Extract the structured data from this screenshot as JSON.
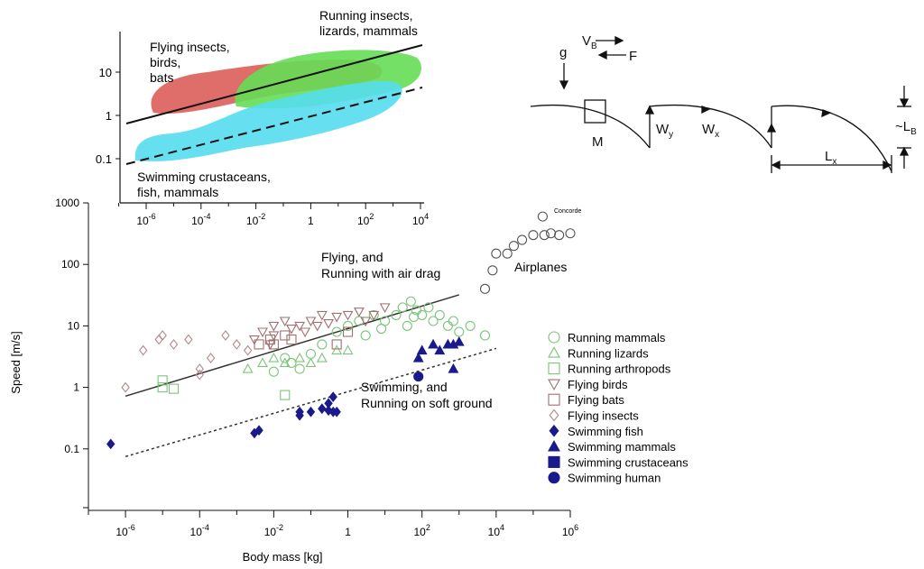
{
  "main_chart": {
    "xlabel": "Body mass [kg]",
    "ylabel": "Speed [m/s]",
    "xlim_log10": [
      -7,
      6
    ],
    "ylim_log10": [
      -1,
      3
    ],
    "x_ticks": [
      {
        "m": "10",
        "e": "-6"
      },
      {
        "m": "10",
        "e": "-4"
      },
      {
        "m": "10",
        "e": "-2"
      },
      {
        "m": "1",
        "e": ""
      },
      {
        "m": "10",
        "e": "2"
      },
      {
        "m": "10",
        "e": "4"
      },
      {
        "m": "10",
        "e": "6"
      }
    ],
    "y_ticks": [
      "0.1",
      "1",
      "10",
      "100",
      "1000"
    ],
    "annotations": {
      "flying_line1": "Flying, and",
      "flying_line2": "Running with air drag",
      "swim_line1": "Swimming, and",
      "swim_line2": "Running on soft ground",
      "airplanes": "Airplanes",
      "concorde": "Concorde"
    },
    "legend": [
      {
        "label": "Running mammals",
        "marker": "circle-open",
        "color": "#7cc47c"
      },
      {
        "label": "Running lizards",
        "marker": "triangle-open",
        "color": "#7cc47c"
      },
      {
        "label": "Running arthropods",
        "marker": "square-open",
        "color": "#7cc47c"
      },
      {
        "label": "Flying birds",
        "marker": "triangle-down-open",
        "color": "#a07070"
      },
      {
        "label": "Flying bats",
        "marker": "square-open",
        "color": "#a07070"
      },
      {
        "label": "Flying insects",
        "marker": "diamond-open",
        "color": "#b08888"
      },
      {
        "label": "Swimming fish",
        "marker": "diamond",
        "color": "#1a1a8c"
      },
      {
        "label": "Swimming mammals",
        "marker": "triangle",
        "color": "#1a1a8c"
      },
      {
        "label": "Swimming crustaceans",
        "marker": "square",
        "color": "#1a1a8c"
      },
      {
        "label": "Swimming human",
        "marker": "circle",
        "color": "#1a1a8c"
      }
    ]
  },
  "chart_data": [
    {
      "type": "scatter",
      "title": "",
      "xlabel": "Body mass [kg]",
      "ylabel": "Speed [m/s]",
      "x_scale": "log",
      "y_scale": "log",
      "xlim": [
        1e-07,
        1000000.0
      ],
      "ylim": [
        0.01,
        1000
      ],
      "grid": false,
      "legend_position": "right",
      "lines": [
        {
          "label": "Flying, and Running with air drag",
          "style": "solid",
          "x": [
            1e-06,
            1000.0
          ],
          "y": [
            0.72,
            32
          ]
        },
        {
          "label": "Swimming, and Running on soft ground",
          "style": "dotted",
          "x": [
            1e-06,
            10000.0
          ],
          "y": [
            0.075,
            4.3
          ]
        }
      ],
      "series": [
        {
          "name": "Running mammals",
          "marker": "circle-open",
          "color": "#7cc47c",
          "points": [
            [
              0.02,
              3
            ],
            [
              0.03,
              2.5
            ],
            [
              0.05,
              2
            ],
            [
              0.1,
              3.5
            ],
            [
              0.2,
              5
            ],
            [
              0.5,
              8
            ],
            [
              1,
              10
            ],
            [
              2,
              12
            ],
            [
              5,
              15
            ],
            [
              10,
              12
            ],
            [
              20,
              15
            ],
            [
              30,
              20
            ],
            [
              50,
              25
            ],
            [
              70,
              18
            ],
            [
              100,
              15
            ],
            [
              150,
              20
            ],
            [
              200,
              12
            ],
            [
              300,
              15
            ],
            [
              500,
              10
            ],
            [
              700,
              12
            ],
            [
              1000,
              8
            ],
            [
              2000,
              10
            ],
            [
              5000,
              7
            ],
            [
              3,
              7
            ],
            [
              8,
              9
            ],
            [
              0.01,
              1.8
            ],
            [
              40,
              10
            ],
            [
              60,
              14
            ]
          ]
        },
        {
          "name": "Running lizards",
          "marker": "triangle-open",
          "color": "#7cc47c",
          "points": [
            [
              0.002,
              2
            ],
            [
              0.005,
              2.5
            ],
            [
              0.01,
              3
            ],
            [
              0.02,
              2.5
            ],
            [
              0.05,
              3
            ],
            [
              0.1,
              2.5
            ],
            [
              0.2,
              3
            ],
            [
              0.5,
              4
            ],
            [
              1,
              4
            ]
          ]
        },
        {
          "name": "Running arthropods",
          "marker": "square-open",
          "color": "#7cc47c",
          "points": [
            [
              1e-05,
              1.3
            ],
            [
              1e-05,
              1.0
            ],
            [
              0.02,
              0.75
            ],
            [
              2e-05,
              0.95
            ]
          ]
        },
        {
          "name": "Flying birds",
          "marker": "triangle-down-open",
          "color": "#a07070",
          "points": [
            [
              0.003,
              6
            ],
            [
              0.005,
              8
            ],
            [
              0.01,
              10
            ],
            [
              0.02,
              12
            ],
            [
              0.03,
              9
            ],
            [
              0.05,
              10
            ],
            [
              0.1,
              12
            ],
            [
              0.2,
              15
            ],
            [
              0.3,
              11
            ],
            [
              0.5,
              14
            ],
            [
              1,
              15
            ],
            [
              2,
              17
            ],
            [
              3,
              12
            ],
            [
              5,
              15
            ],
            [
              10,
              20
            ],
            [
              0.01,
              7
            ],
            [
              0.008,
              5
            ],
            [
              0.07,
              8
            ],
            [
              0.15,
              10
            ]
          ]
        },
        {
          "name": "Flying bats",
          "marker": "square-open",
          "color": "#a07070",
          "points": [
            [
              0.004,
              5
            ],
            [
              0.008,
              6
            ],
            [
              0.01,
              5
            ],
            [
              0.02,
              7
            ],
            [
              0.03,
              6
            ],
            [
              0.5,
              5
            ],
            [
              1,
              8
            ]
          ]
        },
        {
          "name": "Flying insects",
          "marker": "diamond-open",
          "color": "#b08888",
          "points": [
            [
              1e-06,
              1
            ],
            [
              3e-06,
              4
            ],
            [
              8e-06,
              6
            ],
            [
              1e-05,
              7
            ],
            [
              2e-05,
              5
            ],
            [
              5e-05,
              6
            ],
            [
              0.0001,
              2
            ],
            [
              0.0002,
              3
            ],
            [
              0.0005,
              7
            ],
            [
              0.001,
              5
            ],
            [
              0.002,
              4
            ],
            [
              0.0001,
              1.6
            ]
          ]
        },
        {
          "name": "Swimming fish",
          "marker": "diamond",
          "color": "#1a1a8c",
          "points": [
            [
              4e-07,
              0.12
            ],
            [
              0.003,
              0.18
            ],
            [
              0.004,
              0.2
            ],
            [
              0.05,
              0.35
            ],
            [
              0.05,
              0.4
            ],
            [
              0.1,
              0.4
            ],
            [
              0.2,
              0.45
            ],
            [
              0.3,
              0.42
            ],
            [
              0.4,
              0.4
            ],
            [
              0.5,
              0.4
            ],
            [
              0.3,
              0.55
            ],
            [
              0.4,
              0.7
            ]
          ]
        },
        {
          "name": "Swimming mammals",
          "marker": "triangle",
          "color": "#1a1a8c",
          "points": [
            [
              80,
              3
            ],
            [
              100,
              4
            ],
            [
              200,
              5
            ],
            [
              300,
              4
            ],
            [
              500,
              5
            ],
            [
              700,
              5
            ],
            [
              1000,
              5.5
            ],
            [
              700,
              2
            ]
          ]
        },
        {
          "name": "Swimming crustaceans",
          "marker": "square",
          "color": "#1a1a8c",
          "points": []
        },
        {
          "name": "Swimming human",
          "marker": "circle",
          "color": "#1a1a8c",
          "points": [
            [
              80,
              1.5
            ]
          ]
        },
        {
          "name": "Airplanes",
          "marker": "circle-open",
          "color": "#555555",
          "points": [
            [
              5000,
              40
            ],
            [
              8000,
              80
            ],
            [
              10000,
              150
            ],
            [
              20000,
              150
            ],
            [
              30000,
              200
            ],
            [
              50000,
              250
            ],
            [
              100000,
              300
            ],
            [
              200000,
              300
            ],
            [
              300000,
              320
            ],
            [
              500000,
              300
            ],
            [
              1000000,
              320
            ]
          ]
        },
        {
          "name": "Concorde",
          "marker": "circle-open",
          "color": "#555555",
          "points": [
            [
              180000,
              600
            ]
          ]
        }
      ]
    },
    {
      "type": "area",
      "x_scale": "log",
      "y_scale": "log",
      "x_ticks": [
        "10-6",
        "10-4",
        "10-2",
        "1",
        "102",
        "104"
      ],
      "y_ticks": [
        "0.1",
        "1",
        "10"
      ],
      "regions": [
        {
          "name": "Flying insects, birds, bats",
          "color": "#d9534f"
        },
        {
          "name": "Running insects, lizards, mammals",
          "color": "#66dd55"
        },
        {
          "name": "Swimming crustaceans, fish, mammals",
          "color": "#55ddee"
        }
      ],
      "lines": [
        {
          "style": "solid"
        },
        {
          "style": "dashed"
        }
      ]
    }
  ],
  "inset_chart": {
    "y_ticks": [
      "10",
      "1",
      "0.1"
    ],
    "x_ticks": [
      {
        "m": "10",
        "e": "-6"
      },
      {
        "m": "10",
        "e": "-4"
      },
      {
        "m": "10",
        "e": "-2"
      },
      {
        "m": "1",
        "e": ""
      },
      {
        "m": "10",
        "e": "2"
      },
      {
        "m": "10",
        "e": "4"
      }
    ],
    "labels": {
      "flying1": "Flying insects,",
      "flying2": "birds,",
      "flying3": "bats",
      "running1": "Running insects,",
      "running2": "lizards, mammals",
      "swimming1": "Swimming crustaceans,",
      "swimming2": "fish, mammals"
    }
  },
  "diagram": {
    "g": "g",
    "VB_main": "V",
    "VB_sub": "B",
    "F": "F",
    "M": "M",
    "Wy_main": "W",
    "Wy_sub": "y",
    "Wx_main": "W",
    "Wx_sub": "x",
    "LB_prefix": "~L",
    "LB_sub": "B",
    "Lx_main": "L",
    "Lx_sub": "x"
  }
}
